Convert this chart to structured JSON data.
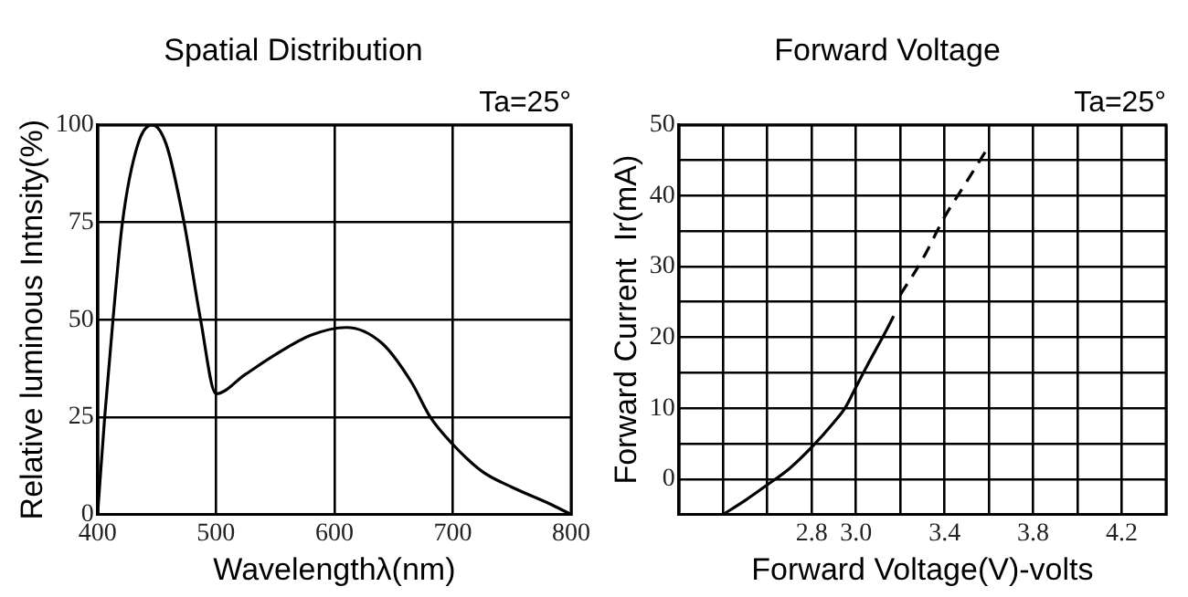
{
  "chart_data": [
    {
      "type": "line",
      "title": "Spatial Distribution",
      "xlabel": "Wavelengthλ(nm)",
      "ylabel": "Relative luminous Intnsity(%)",
      "annotations": [
        "Ta=25°"
      ],
      "x": [
        400,
        406,
        413,
        421,
        434,
        446,
        458,
        473,
        487,
        500,
        525,
        550,
        580,
        610,
        640,
        665,
        681,
        700,
        725,
        750,
        780,
        800
      ],
      "series": [
        {
          "color": "#000000",
          "values": [
            0,
            25,
            50,
            75,
            95,
            100,
            95,
            75,
            50,
            31,
            36,
            41,
            46,
            48,
            44,
            34,
            25,
            18,
            11,
            7,
            3,
            0
          ]
        }
      ],
      "xlim": [
        400,
        800
      ],
      "xticks": [
        400,
        500,
        600,
        700,
        800
      ],
      "ylim": [
        0,
        100
      ],
      "yticks": [
        0,
        25,
        50,
        75,
        100
      ],
      "grid": true,
      "marker": "none",
      "legend": false
    },
    {
      "type": "line",
      "title": "Forward Voltage",
      "xlabel": "Forward Voltage(V)-volts",
      "ylabel": "Forward Current  Ir(mA)",
      "annotations": [
        "Ta=25°"
      ],
      "series": [
        {
          "color": "#000000",
          "line_style": "solid",
          "x": [
            2.4,
            2.5,
            2.6,
            2.7,
            2.8,
            2.9,
            2.95,
            3.0,
            3.05,
            3.12,
            3.17
          ],
          "values": [
            -5,
            -3,
            -0.8,
            1.5,
            4.5,
            8,
            10,
            13,
            16,
            20,
            23
          ]
        },
        {
          "color": "#000000",
          "line_style": "dashed",
          "x": [
            3.2,
            3.3,
            3.4,
            3.5,
            3.6
          ],
          "values": [
            26,
            31,
            37,
            42,
            47
          ]
        }
      ],
      "xlim": [
        2.2,
        4.4
      ],
      "xticks": [
        {
          "value": 2.2,
          "label": null
        },
        {
          "value": 2.4,
          "label": null
        },
        {
          "value": 2.6,
          "label": null
        },
        2.8,
        {
          "value": 3.0,
          "label": "3.0"
        },
        {
          "value": 3.2,
          "label": null
        },
        3.4,
        {
          "value": 3.6,
          "label": null
        },
        3.8,
        {
          "value": 4.0,
          "label": null
        },
        4.2,
        {
          "value": 4.4,
          "label": null
        }
      ],
      "ylim": [
        -5,
        50
      ],
      "yticks": [
        {
          "value": -5,
          "label": null
        },
        0,
        {
          "value": 5,
          "label": null
        },
        10,
        {
          "value": 15,
          "label": null
        },
        20,
        {
          "value": 25,
          "label": null
        },
        30,
        {
          "value": 35,
          "label": null
        },
        40,
        {
          "value": 45,
          "label": null
        },
        50
      ],
      "grid": true,
      "marker": "none",
      "legend": false
    }
  ]
}
